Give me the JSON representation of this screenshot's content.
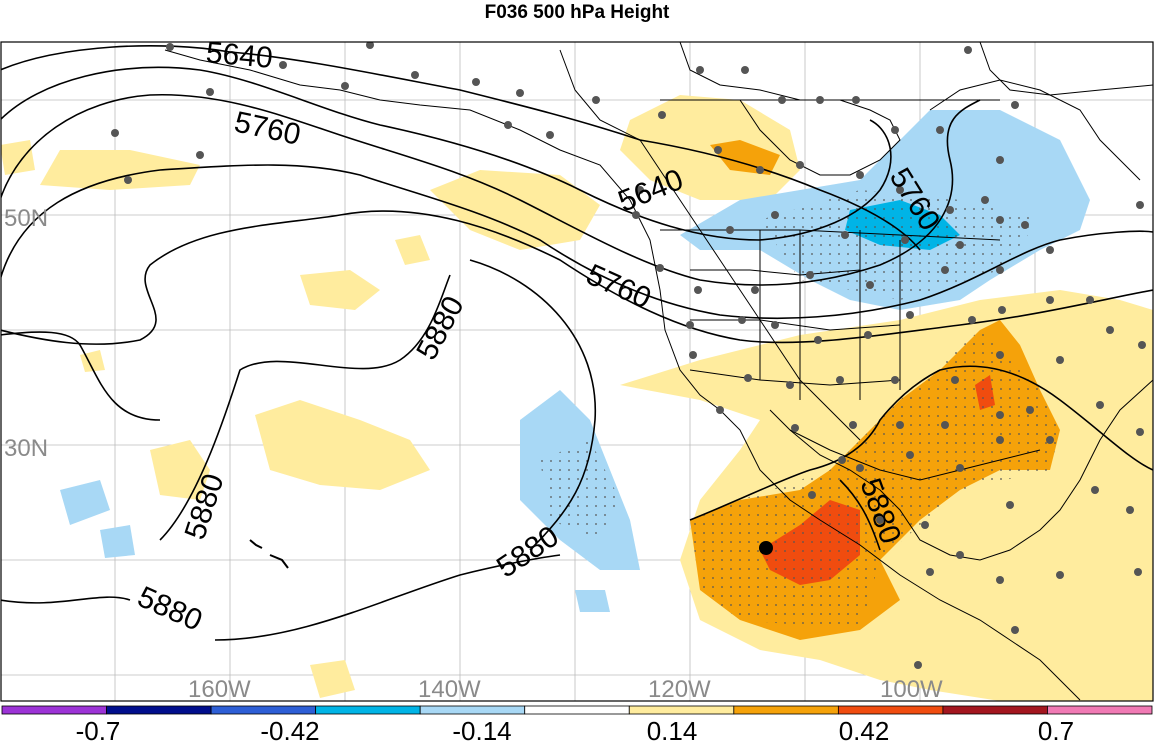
{
  "title": "F036 500 hPa Height",
  "lat_labels": [
    "50N",
    "30N"
  ],
  "lon_labels": [
    "160W",
    "140W",
    "120W",
    "100W"
  ],
  "contour_labels": [
    "5640",
    "5760",
    "5640",
    "5760",
    "5760",
    "5880",
    "5880",
    "5880",
    "5880",
    "5880"
  ],
  "colorbar": {
    "colors": [
      "#9c33d6",
      "#000e8c",
      "#2e5fd6",
      "#00b4e6",
      "#a8d8f5",
      "#ffffff",
      "#ffec9e",
      "#f5a20a",
      "#f04c0f",
      "#a3161f",
      "#f07ab4"
    ],
    "tick_labels": [
      "-0.7",
      "-0.42",
      "-0.14",
      "0.14",
      "0.42",
      "0.7"
    ]
  }
}
